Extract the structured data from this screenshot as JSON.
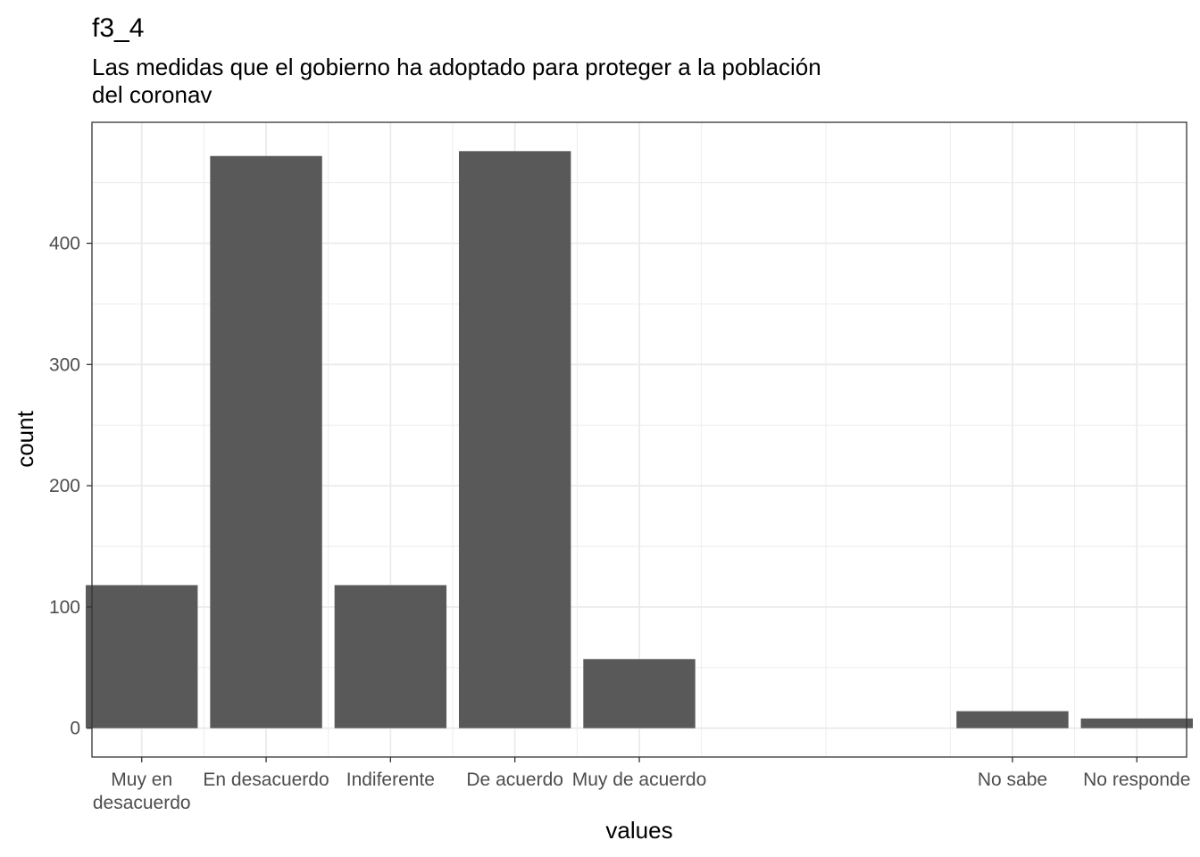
{
  "chart_data": {
    "type": "bar",
    "title": "f3_4",
    "subtitle": [
      "Las medidas que el gobierno ha adoptado para proteger a la población",
      "del coronav"
    ],
    "xlabel": "values",
    "ylabel": "count",
    "categories": [
      {
        "label": [
          "Muy en",
          "desacuerdo"
        ],
        "x": 1
      },
      {
        "label": [
          "En desacuerdo"
        ],
        "x": 2
      },
      {
        "label": [
          "Indiferente"
        ],
        "x": 3
      },
      {
        "label": [
          "De acuerdo"
        ],
        "x": 4
      },
      {
        "label": [
          "Muy de acuerdo"
        ],
        "x": 5
      },
      {
        "label": [
          "No sabe"
        ],
        "x": 8
      },
      {
        "label": [
          "No responde"
        ],
        "x": 9
      }
    ],
    "values": [
      118,
      472,
      118,
      476,
      57,
      14,
      8
    ],
    "xlim": [
      0.6,
      9.4
    ],
    "ylim": [
      -23.8,
      499.8
    ],
    "yticks": [
      0,
      100,
      200,
      300,
      400
    ],
    "bar_color": "#595959",
    "grid": true,
    "grid_color": "#ebebeb",
    "panel_border_color": "#333333"
  }
}
